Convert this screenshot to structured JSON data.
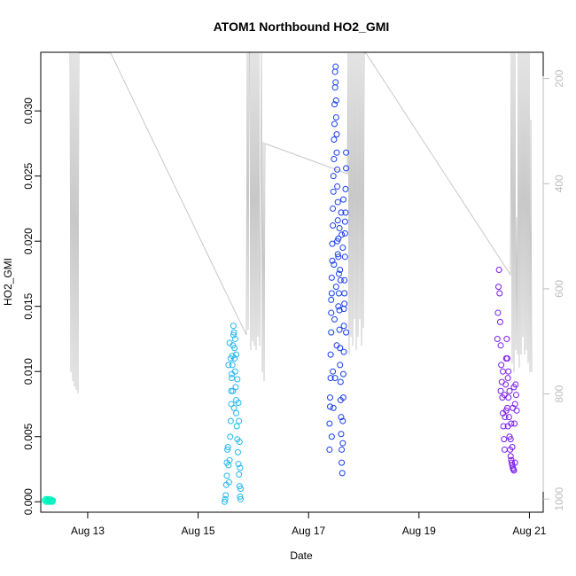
{
  "chart_data": {
    "type": "scatter",
    "title": "ATOM1 Northbound HO2_GMI",
    "xlabel": "Date",
    "ylabel": "HO2_GMI",
    "x_range_days": [
      12.15,
      21.25
    ],
    "x_ticks": [
      {
        "day": 13,
        "label": "Aug 13"
      },
      {
        "day": 15,
        "label": "Aug 15"
      },
      {
        "day": 17,
        "label": "Aug 17"
      },
      {
        "day": 19,
        "label": "Aug 19"
      },
      {
        "day": 21,
        "label": "Aug 21"
      }
    ],
    "ylim": [
      -0.0008,
      0.0345
    ],
    "y_ticks": [
      0.0,
      0.005,
      0.01,
      0.015,
      0.02,
      0.025,
      0.03
    ],
    "y_tick_labels": [
      "0.000",
      "0.005",
      "0.010",
      "0.015",
      "0.020",
      "0.025",
      "0.030"
    ],
    "secondary_y": {
      "color": "#bdbdbd",
      "range": [
        1025,
        150
      ],
      "ticks": [
        200,
        400,
        600,
        800,
        1000
      ],
      "tick_labels": [
        "200",
        "400",
        "600",
        "800",
        "1000"
      ]
    },
    "grid": false,
    "legend": "none",
    "series": [
      {
        "color": "#00f0c0",
        "points": [
          [
            12.22,
            0.0001
          ],
          [
            12.24,
            0.0002
          ],
          [
            12.25,
            0.0
          ],
          [
            12.26,
            0.0001
          ],
          [
            12.27,
            0.0001
          ],
          [
            12.28,
            0.0002
          ],
          [
            12.29,
            0.0
          ],
          [
            12.3,
            0.0001
          ],
          [
            12.31,
            0.0001
          ],
          [
            12.32,
            0.0002
          ],
          [
            12.33,
            0.0
          ],
          [
            12.34,
            0.0001
          ],
          [
            12.35,
            0.0001
          ],
          [
            12.36,
            0.0
          ],
          [
            12.37,
            0.0001
          ]
        ]
      },
      {
        "color": "#22b8ef",
        "points": [
          [
            15.48,
            0.0
          ],
          [
            15.49,
            0.0002
          ],
          [
            15.5,
            0.0005
          ],
          [
            15.51,
            0.0013
          ],
          [
            15.52,
            0.002
          ],
          [
            15.52,
            0.003
          ],
          [
            15.53,
            0.004
          ],
          [
            15.54,
            0.0042
          ],
          [
            15.55,
            0.0028
          ],
          [
            15.56,
            0.0015
          ],
          [
            15.57,
            0.0032
          ],
          [
            15.58,
            0.005
          ],
          [
            15.59,
            0.0062
          ],
          [
            15.6,
            0.0075
          ],
          [
            15.6,
            0.0085
          ],
          [
            15.61,
            0.0095
          ],
          [
            15.62,
            0.0105
          ],
          [
            15.62,
            0.0112
          ],
          [
            15.63,
            0.012
          ],
          [
            15.64,
            0.0128
          ],
          [
            15.64,
            0.0135
          ],
          [
            15.65,
            0.013
          ],
          [
            15.66,
            0.0118
          ],
          [
            15.66,
            0.011
          ],
          [
            15.67,
            0.01
          ],
          [
            15.68,
            0.0088
          ],
          [
            15.69,
            0.0078
          ],
          [
            15.69,
            0.0068
          ],
          [
            15.7,
            0.0058
          ],
          [
            15.71,
            0.0048
          ],
          [
            15.72,
            0.0038
          ],
          [
            15.73,
            0.0029
          ],
          [
            15.74,
            0.0021
          ],
          [
            15.75,
            0.0012
          ],
          [
            15.76,
            0.0004
          ],
          [
            15.77,
            0.0002
          ],
          [
            15.55,
            0.0105
          ],
          [
            15.57,
            0.0122
          ],
          [
            15.59,
            0.011
          ],
          [
            15.61,
            0.0098
          ],
          [
            15.63,
            0.0085
          ],
          [
            15.65,
            0.0072
          ],
          [
            15.67,
            0.0125
          ],
          [
            15.69,
            0.0113
          ],
          [
            15.71,
            0.0094
          ],
          [
            15.73,
            0.0076
          ],
          [
            15.74,
            0.0062
          ],
          [
            15.75,
            0.0046
          ],
          [
            15.76,
            0.0026
          ],
          [
            15.77,
            0.001
          ]
        ]
      },
      {
        "color": "#1a3ef0",
        "points": [
          [
            17.38,
            0.004
          ],
          [
            17.38,
            0.006
          ],
          [
            17.39,
            0.0073
          ],
          [
            17.39,
            0.008
          ],
          [
            17.4,
            0.0095
          ],
          [
            17.4,
            0.0113
          ],
          [
            17.41,
            0.013
          ],
          [
            17.41,
            0.0145
          ],
          [
            17.42,
            0.016
          ],
          [
            17.42,
            0.0172
          ],
          [
            17.43,
            0.0185
          ],
          [
            17.43,
            0.0198
          ],
          [
            17.44,
            0.0212
          ],
          [
            17.44,
            0.0225
          ],
          [
            17.45,
            0.0238
          ],
          [
            17.45,
            0.025
          ],
          [
            17.46,
            0.0263
          ],
          [
            17.46,
            0.0278
          ],
          [
            17.47,
            0.029
          ],
          [
            17.47,
            0.0305
          ],
          [
            17.48,
            0.0318
          ],
          [
            17.48,
            0.033
          ],
          [
            17.49,
            0.0334
          ],
          [
            17.49,
            0.0322
          ],
          [
            17.5,
            0.0308
          ],
          [
            17.5,
            0.0295
          ],
          [
            17.51,
            0.0282
          ],
          [
            17.51,
            0.0268
          ],
          [
            17.52,
            0.0255
          ],
          [
            17.52,
            0.0242
          ],
          [
            17.53,
            0.023
          ],
          [
            17.53,
            0.0216
          ],
          [
            17.54,
            0.0202
          ],
          [
            17.54,
            0.0188
          ],
          [
            17.55,
            0.0175
          ],
          [
            17.55,
            0.016
          ],
          [
            17.56,
            0.0147
          ],
          [
            17.56,
            0.0132
          ],
          [
            17.57,
            0.0118
          ],
          [
            17.57,
            0.0105
          ],
          [
            17.58,
            0.0092
          ],
          [
            17.58,
            0.0078
          ],
          [
            17.59,
            0.0065
          ],
          [
            17.59,
            0.0052
          ],
          [
            17.6,
            0.004
          ],
          [
            17.6,
            0.003
          ],
          [
            17.61,
            0.0022
          ],
          [
            17.62,
            0.0045
          ],
          [
            17.62,
            0.0062
          ],
          [
            17.63,
            0.008
          ],
          [
            17.63,
            0.0098
          ],
          [
            17.64,
            0.0115
          ],
          [
            17.64,
            0.0135
          ],
          [
            17.65,
            0.0152
          ],
          [
            17.65,
            0.017
          ],
          [
            17.66,
            0.0188
          ],
          [
            17.66,
            0.0206
          ],
          [
            17.67,
            0.0222
          ],
          [
            17.67,
            0.024
          ],
          [
            17.68,
            0.0256
          ],
          [
            17.68,
            0.0268
          ],
          [
            17.42,
            0.005
          ],
          [
            17.45,
            0.0072
          ],
          [
            17.48,
            0.0095
          ],
          [
            17.51,
            0.012
          ],
          [
            17.54,
            0.015
          ],
          [
            17.57,
            0.0178
          ],
          [
            17.6,
            0.0205
          ],
          [
            17.63,
            0.0232
          ],
          [
            17.66,
            0.0215
          ],
          [
            17.44,
            0.01
          ],
          [
            17.47,
            0.014
          ],
          [
            17.5,
            0.0165
          ],
          [
            17.53,
            0.019
          ],
          [
            17.56,
            0.021
          ],
          [
            17.59,
            0.0222
          ],
          [
            17.62,
            0.0195
          ],
          [
            17.65,
            0.016
          ],
          [
            17.68,
            0.013
          ],
          [
            17.41,
            0.0155
          ],
          [
            17.46,
            0.0182
          ],
          [
            17.52,
            0.02
          ],
          [
            17.58,
            0.017
          ],
          [
            17.64,
            0.0148
          ]
        ]
      },
      {
        "color": "#7a1cf0",
        "points": [
          [
            20.42,
            0.0125
          ],
          [
            20.43,
            0.0145
          ],
          [
            20.44,
            0.0165
          ],
          [
            20.45,
            0.0178
          ],
          [
            20.46,
            0.016
          ],
          [
            20.47,
            0.0138
          ],
          [
            20.48,
            0.012
          ],
          [
            20.49,
            0.0105
          ],
          [
            20.5,
            0.0092
          ],
          [
            20.51,
            0.008
          ],
          [
            20.52,
            0.0068
          ],
          [
            20.53,
            0.0058
          ],
          [
            20.54,
            0.0048
          ],
          [
            20.55,
            0.004
          ],
          [
            20.56,
            0.0065
          ],
          [
            20.57,
            0.009
          ],
          [
            20.58,
            0.011
          ],
          [
            20.59,
            0.0125
          ],
          [
            20.6,
            0.011
          ],
          [
            20.61,
            0.0095
          ],
          [
            20.62,
            0.008
          ],
          [
            20.63,
            0.0065
          ],
          [
            20.64,
            0.005
          ],
          [
            20.65,
            0.004
          ],
          [
            20.66,
            0.0035
          ],
          [
            20.67,
            0.0032
          ],
          [
            20.68,
            0.003
          ],
          [
            20.69,
            0.0028
          ],
          [
            20.7,
            0.0026
          ],
          [
            20.71,
            0.0025
          ],
          [
            20.72,
            0.0024
          ],
          [
            20.73,
            0.006
          ],
          [
            20.74,
            0.0075
          ],
          [
            20.75,
            0.009
          ],
          [
            20.76,
            0.0082
          ],
          [
            20.77,
            0.007
          ],
          [
            20.55,
            0.0082
          ],
          [
            20.58,
            0.007
          ],
          [
            20.61,
            0.0058
          ],
          [
            20.64,
            0.0085
          ],
          [
            20.67,
            0.006
          ],
          [
            20.7,
            0.0072
          ],
          [
            20.72,
            0.0088
          ],
          [
            20.62,
            0.01
          ],
          [
            20.66,
            0.0048
          ],
          [
            20.69,
            0.0042
          ],
          [
            20.52,
            0.01
          ],
          [
            20.48,
            0.0085
          ],
          [
            20.74,
            0.003
          ],
          [
            20.6,
            0.0072
          ]
        ]
      }
    ]
  }
}
